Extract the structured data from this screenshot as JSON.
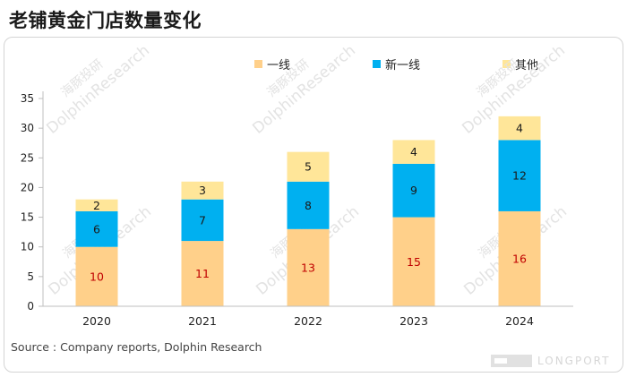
{
  "title": "老铺黄金门店数量变化",
  "source": "Source : Company reports, Dolphin Research",
  "watermarks": {
    "dolphin_cn": "海豚投研",
    "dolphin_en": "DolphinResearch",
    "longport": "LONGPORT"
  },
  "chart_data": {
    "type": "bar",
    "stacked": true,
    "title": "老铺黄金门店数量变化",
    "categories": [
      "2020",
      "2021",
      "2022",
      "2023",
      "2024"
    ],
    "series": [
      {
        "name": "一线",
        "color": "#FFD08A",
        "label_color": "#C00000",
        "values": [
          10,
          11,
          13,
          15,
          16
        ]
      },
      {
        "name": "新一线",
        "color": "#00B0F0",
        "label_color": "#1a1a1a",
        "values": [
          6,
          7,
          8,
          9,
          12
        ]
      },
      {
        "name": "其他",
        "color": "#FFE699",
        "label_color": "#1a1a1a",
        "values": [
          2,
          3,
          5,
          4,
          4
        ]
      }
    ],
    "ylim": [
      0,
      35
    ],
    "yticks": [
      0,
      5,
      10,
      15,
      20,
      25,
      30,
      35
    ],
    "grid": false,
    "legend_position": "top"
  }
}
